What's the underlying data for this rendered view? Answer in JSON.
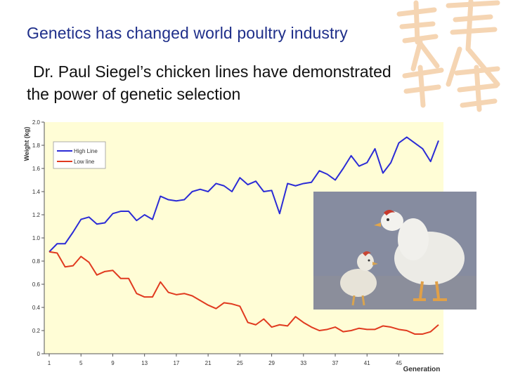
{
  "slide": {
    "title": "Genetics has changed world poultry industry",
    "subtitle_line1": "Dr. Paul Siegel’s chicken lines have demonstrated",
    "subtitle_line2": "the power of genetic selection"
  },
  "chart_data": {
    "type": "line",
    "ylabel": "Weight (kg)",
    "xlabel": "Generation",
    "ylim": [
      0,
      2.0
    ],
    "yticks": [
      0,
      0.2,
      0.4,
      0.6,
      0.8,
      1.0,
      1.2,
      1.4,
      1.6,
      1.8,
      2.0
    ],
    "ytick_labels": [
      "0",
      "0.2",
      "0.4",
      "0.6",
      "0.8",
      "1.0",
      "1.2",
      "1.4",
      "1.6",
      "1.8",
      "2.0"
    ],
    "xlim": [
      1,
      50
    ],
    "xticks": [
      1,
      5,
      9,
      13,
      17,
      21,
      25,
      29,
      33,
      37,
      41,
      45
    ],
    "grid": false,
    "legend_position": "top-left",
    "background": "#fffdd6",
    "x": [
      1,
      2,
      3,
      4,
      5,
      6,
      7,
      8,
      9,
      10,
      11,
      12,
      13,
      14,
      15,
      16,
      17,
      18,
      19,
      20,
      21,
      22,
      23,
      24,
      25,
      26,
      27,
      28,
      29,
      30,
      31,
      32,
      33,
      34,
      35,
      36,
      37,
      38,
      39,
      40,
      41,
      42,
      43,
      44,
      45,
      46,
      47,
      48,
      49,
      50
    ],
    "series": [
      {
        "name": "High Line",
        "color": "#2b2bd6",
        "values": [
          0.88,
          0.95,
          0.95,
          1.05,
          1.16,
          1.18,
          1.12,
          1.13,
          1.21,
          1.23,
          1.23,
          1.15,
          1.2,
          1.16,
          1.36,
          1.33,
          1.32,
          1.33,
          1.4,
          1.42,
          1.4,
          1.47,
          1.45,
          1.4,
          1.52,
          1.46,
          1.49,
          1.4,
          1.41,
          1.21,
          1.47,
          1.45,
          1.47,
          1.48,
          1.58,
          1.55,
          1.5,
          1.6,
          1.71,
          1.62,
          1.65,
          1.77,
          1.56,
          1.65,
          1.82,
          1.87,
          1.82,
          1.77,
          1.66,
          1.84
        ]
      },
      {
        "name": "Low line",
        "color": "#e03a1f",
        "values": [
          0.88,
          0.87,
          0.75,
          0.76,
          0.84,
          0.79,
          0.68,
          0.71,
          0.72,
          0.65,
          0.65,
          0.52,
          0.49,
          0.49,
          0.62,
          0.53,
          0.51,
          0.52,
          0.5,
          0.46,
          0.42,
          0.39,
          0.44,
          0.43,
          0.41,
          0.27,
          0.25,
          0.3,
          0.23,
          0.25,
          0.24,
          0.32,
          0.27,
          0.23,
          0.2,
          0.21,
          0.23,
          0.19,
          0.2,
          0.22,
          0.21,
          0.21,
          0.24,
          0.23,
          0.21,
          0.2,
          0.17,
          0.17,
          0.19,
          0.25
        ]
      }
    ]
  }
}
